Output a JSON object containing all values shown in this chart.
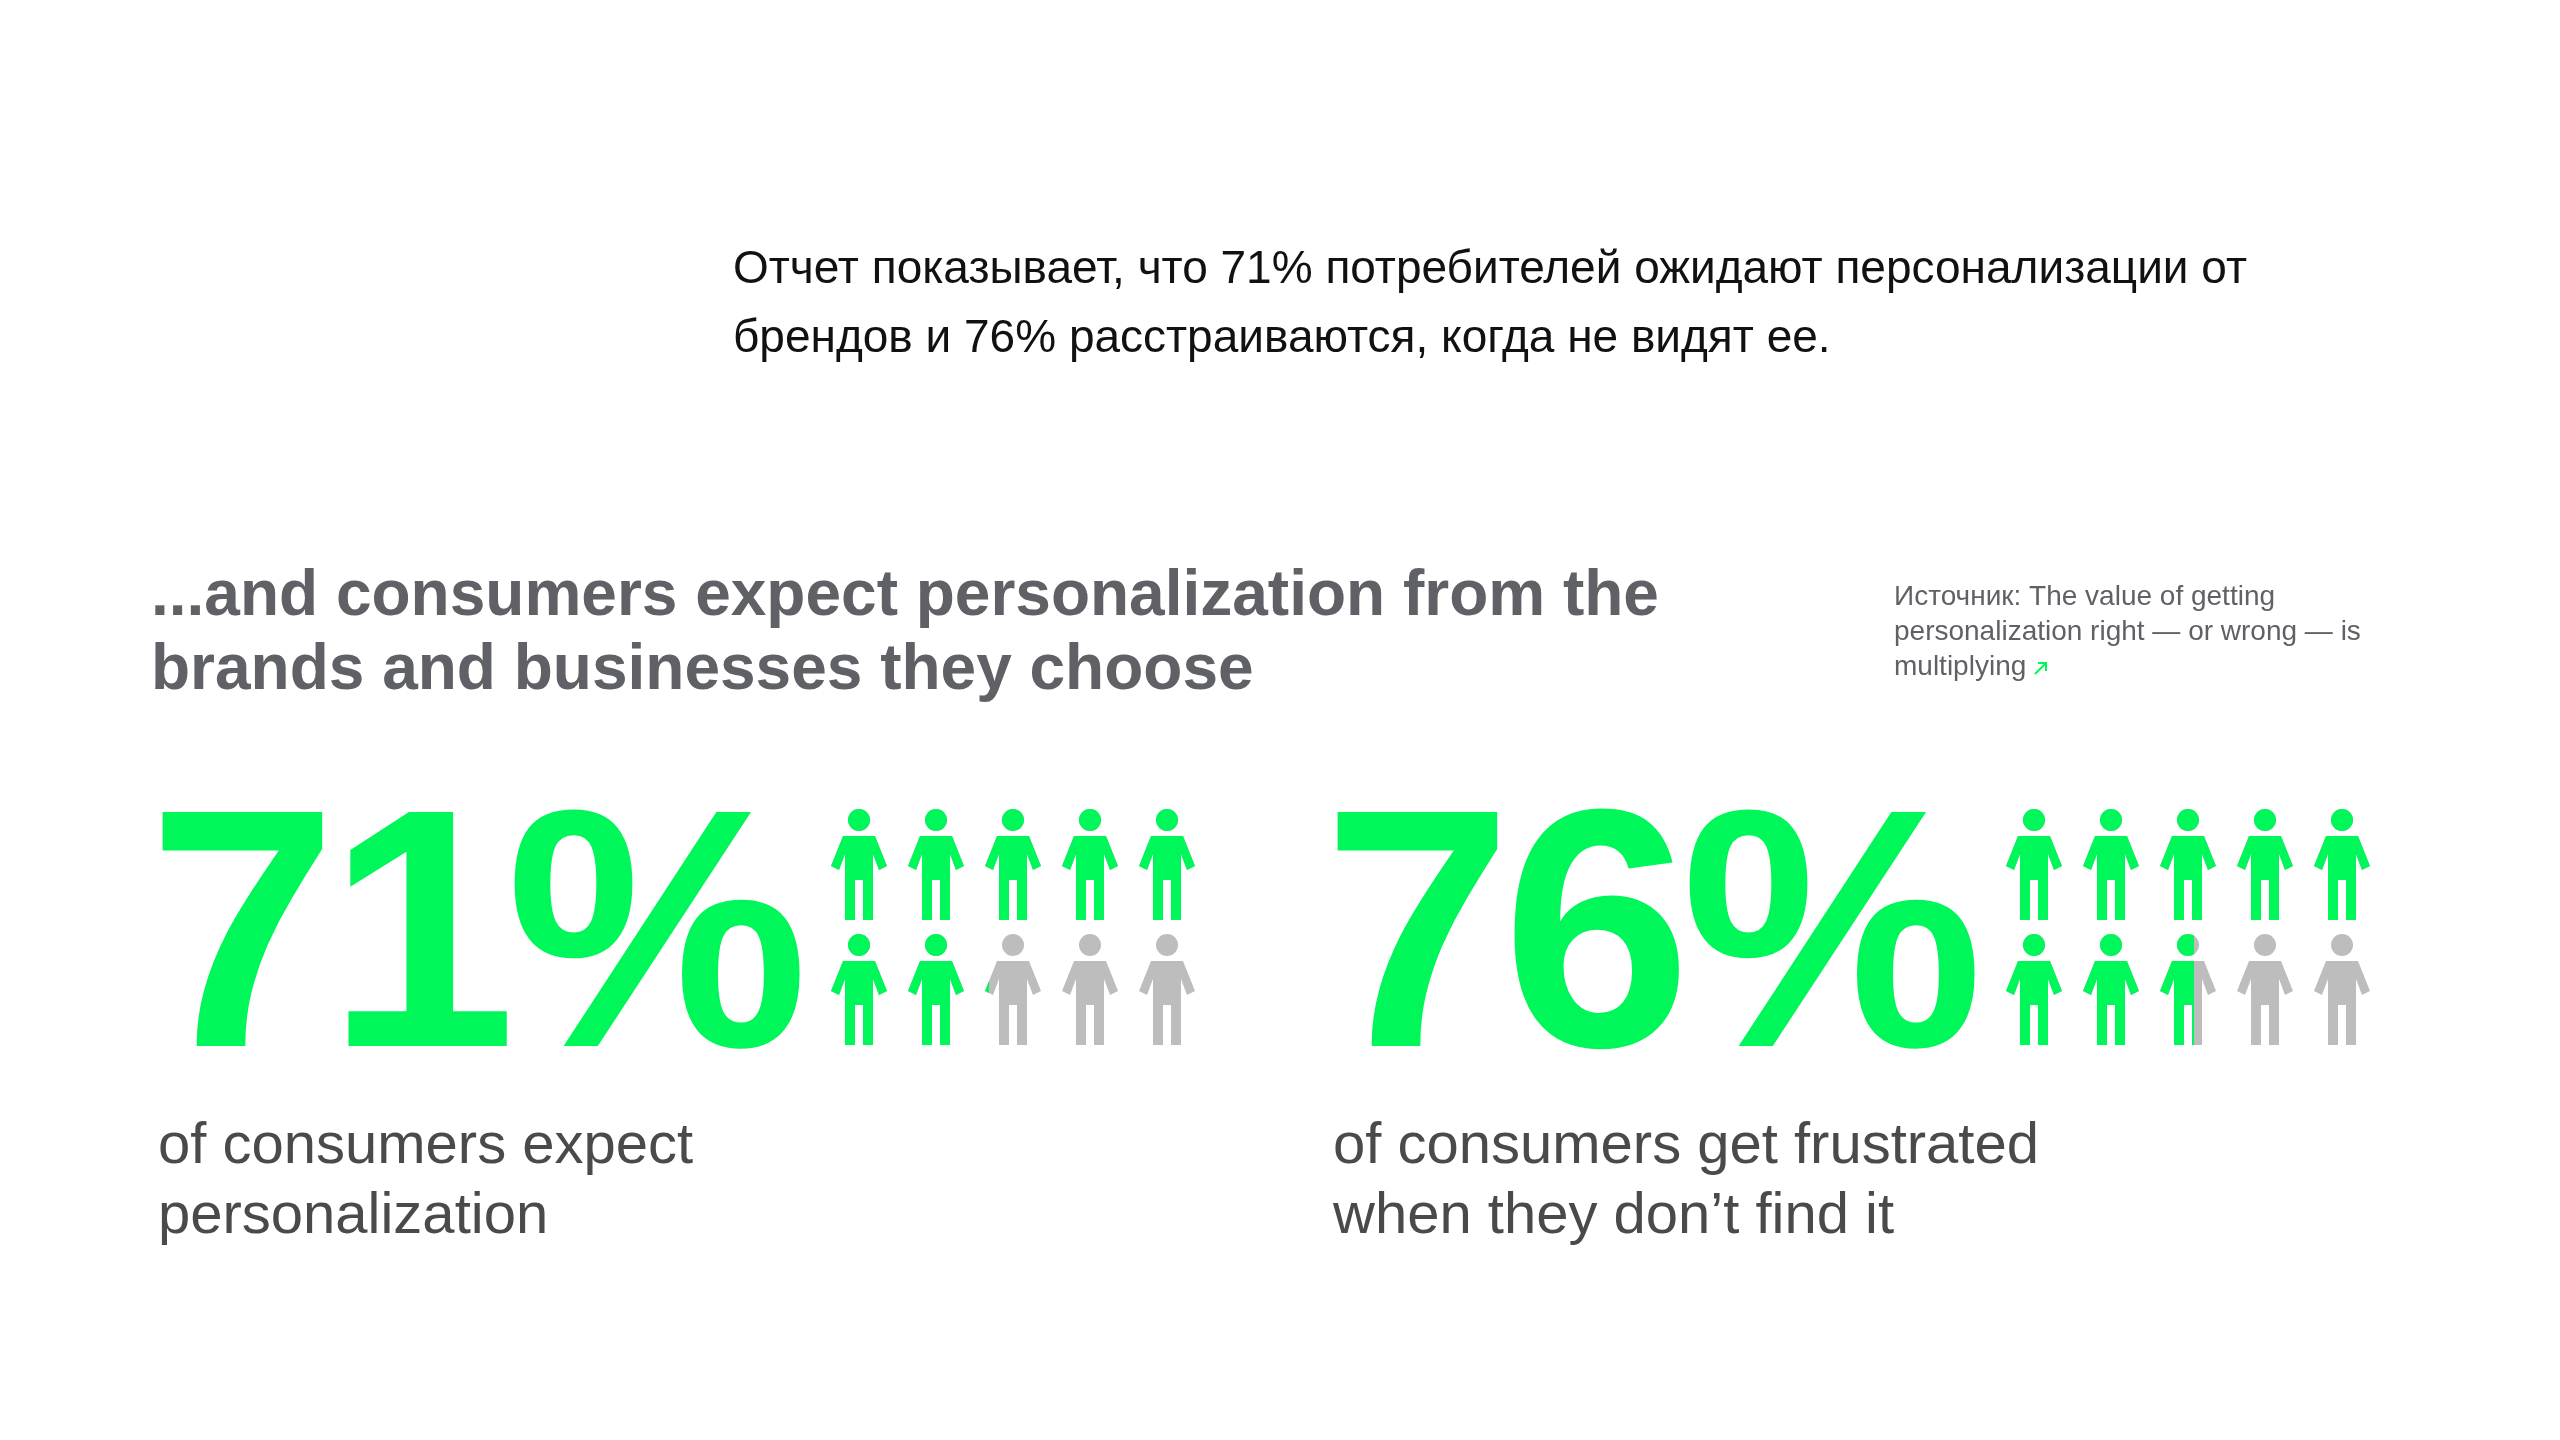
{
  "chart_data": [
    {
      "type": "other",
      "title": "Отчет показывает, что 71% потребителей ожидают персонализации от брендов и 76% расстраиваются, когда не видят ее.",
      "subtitle": "...and consumers expect personalization from the brands and businesses they choose",
      "values": [
        71
      ],
      "value_labels": [
        "71%"
      ],
      "color": "#00f75a",
      "xlabel": "of consumers expect personalization"
    },
    {
      "type": "other",
      "annotations": [
        "Источник: The value of getting personalization right — or wrong — is multiplying"
      ],
      "values": [
        76
      ],
      "value_labels": [
        "76%"
      ],
      "color": "#00f75a",
      "xlabel": "of consumers get frustrated when they don’t find it"
    }
  ]
}
